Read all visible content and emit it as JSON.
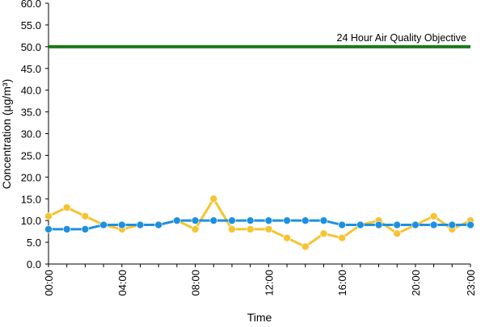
{
  "chart_data": {
    "type": "line",
    "title": "",
    "xlabel": "Time",
    "ylabel": "Concentration (µg/m³)",
    "ylim": [
      0,
      60
    ],
    "yticks": [
      "0.0",
      "5.0",
      "10.0",
      "15.0",
      "20.0",
      "25.0",
      "30.0",
      "35.0",
      "40.0",
      "45.0",
      "50.0",
      "55.0",
      "60.0"
    ],
    "x": [
      "00:00",
      "01:00",
      "02:00",
      "03:00",
      "04:00",
      "05:00",
      "06:00",
      "07:00",
      "08:00",
      "09:00",
      "10:00",
      "11:00",
      "12:00",
      "13:00",
      "14:00",
      "15:00",
      "16:00",
      "17:00",
      "18:00",
      "19:00",
      "20:00",
      "21:00",
      "22:00",
      "23:00"
    ],
    "xtick_labels": [
      "00:00",
      "04:00",
      "08:00",
      "12:00",
      "16:00",
      "20:00",
      "23:00"
    ],
    "xtick_indices": [
      0,
      4,
      8,
      12,
      16,
      20,
      23
    ],
    "grid": false,
    "legend": "none",
    "series": [
      {
        "color": "#f5c433",
        "marker": "circle",
        "values": [
          11,
          13,
          11,
          9,
          8,
          9,
          9,
          10,
          8,
          15,
          8,
          8,
          8,
          6,
          4,
          7,
          6,
          9,
          10,
          7,
          9,
          11,
          8,
          10
        ]
      },
      {
        "color": "#1e90e0",
        "marker": "circle",
        "values": [
          8,
          8,
          8,
          9,
          9,
          9,
          9,
          10,
          10,
          10,
          10,
          10,
          10,
          10,
          10,
          10,
          9,
          9,
          9,
          9,
          9,
          9,
          9,
          9
        ]
      }
    ],
    "reference_line": {
      "label": "24 Hour Air Quality Objective",
      "value": 50,
      "color": "#1a7a1a"
    }
  }
}
